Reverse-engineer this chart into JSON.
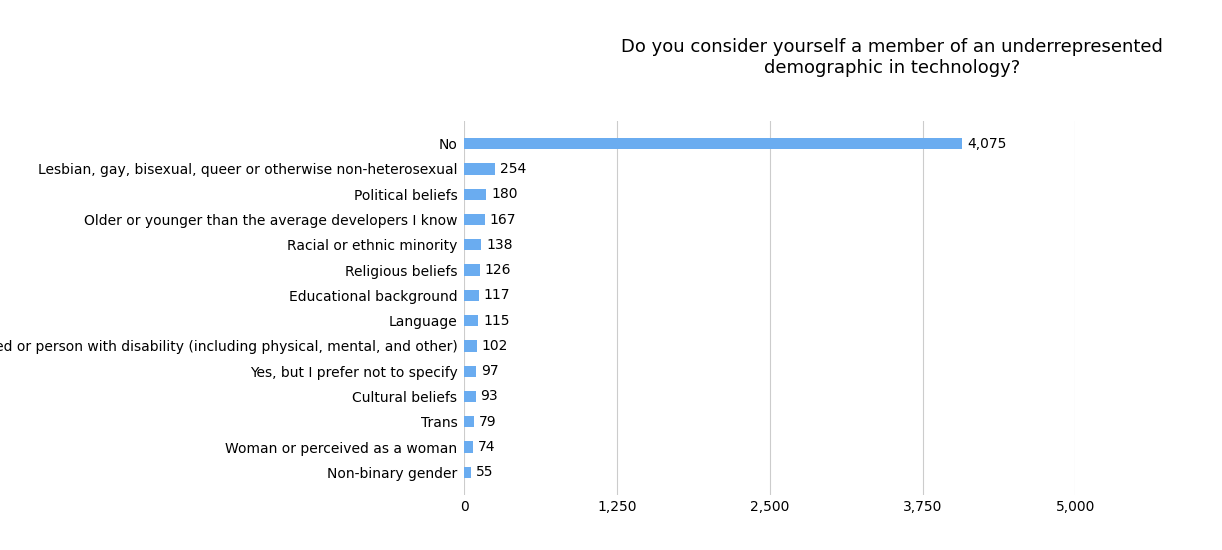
{
  "title": "Do you consider yourself a member of an underrepresented\ndemographic in technology?",
  "categories": [
    "Non-binary gender",
    "Woman or perceived as a woman",
    "Trans",
    "Cultural beliefs",
    "Yes, but I prefer not to specify",
    "Disabled or person with disability (including physical, mental, and other)",
    "Language",
    "Educational background",
    "Religious beliefs",
    "Racial or ethnic minority",
    "Older or younger than the average developers I know",
    "Political beliefs",
    "Lesbian, gay, bisexual, queer or otherwise non-heterosexual",
    "No"
  ],
  "values": [
    55,
    74,
    79,
    93,
    97,
    102,
    115,
    117,
    126,
    138,
    167,
    180,
    254,
    4075
  ],
  "bar_color": "#6aacf0",
  "background_color": "#ffffff",
  "xlim": [
    0,
    5000
  ],
  "xticks": [
    0,
    1250,
    2500,
    3750,
    5000
  ],
  "xtick_labels": [
    "0",
    "1,250",
    "2,500",
    "3,750",
    "5,000"
  ],
  "title_fontsize": 13,
  "label_fontsize": 10,
  "tick_fontsize": 10,
  "value_fontsize": 10,
  "bar_height": 0.45
}
